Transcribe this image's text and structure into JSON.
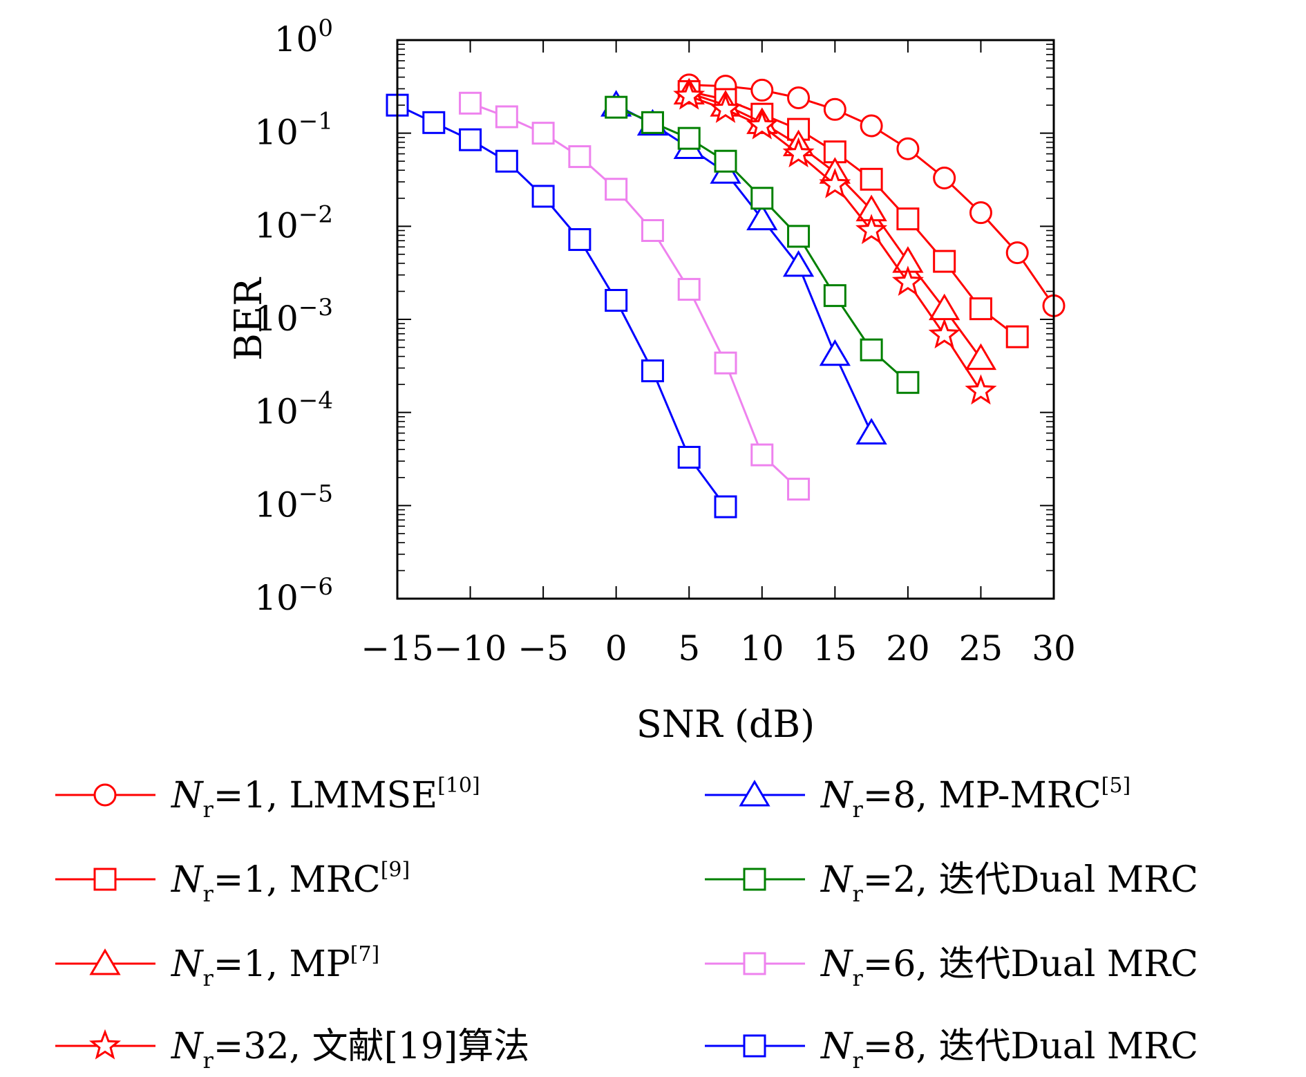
{
  "chart_data": {
    "type": "line",
    "xlabel": "SNR (dB)",
    "ylabel": "BER",
    "xlim": [
      -15,
      30
    ],
    "ylim": [
      1e-06,
      1
    ],
    "y_scale": "log",
    "x_ticks": [
      "−15",
      "−10",
      "−5",
      "0",
      "5",
      "10",
      "15",
      "20",
      "25",
      "30"
    ],
    "y_ticks": [
      {
        "base": "10",
        "exp": "0"
      },
      {
        "base": "10",
        "exp": "−1"
      },
      {
        "base": "10",
        "exp": "−2"
      },
      {
        "base": "10",
        "exp": "−3"
      },
      {
        "base": "10",
        "exp": "−4"
      },
      {
        "base": "10",
        "exp": "−5"
      },
      {
        "base": "10",
        "exp": "−6"
      }
    ],
    "legend_columns": 2,
    "legend_placement": "below",
    "series": [
      {
        "legend": {
          "var": "N",
          "sub": "r",
          "rest": "=1, LMMSE",
          "sup": "[10]"
        },
        "color": "#ff0000",
        "marker": "circle",
        "x": [
          5,
          7.5,
          10,
          12.5,
          15,
          17.5,
          20,
          22.5,
          25,
          27.5,
          30
        ],
        "y": [
          0.33,
          0.32,
          0.29,
          0.24,
          0.18,
          0.12,
          0.068,
          0.033,
          0.014,
          0.0052,
          0.0014
        ]
      },
      {
        "legend": {
          "var": "N",
          "sub": "r",
          "rest": "=1, MRC",
          "sup": "[9]"
        },
        "color": "#ff0000",
        "marker": "square",
        "x": [
          5,
          7.5,
          10,
          12.5,
          15,
          17.5,
          20,
          22.5,
          25,
          27.5
        ],
        "y": [
          0.28,
          0.23,
          0.16,
          0.11,
          0.063,
          0.032,
          0.012,
          0.0042,
          0.0013,
          0.00065
        ]
      },
      {
        "legend": {
          "var": "N",
          "sub": "r",
          "rest": "=1, MP",
          "sup": "[7]"
        },
        "color": "#ff0000",
        "marker": "triangle",
        "x": [
          5,
          7.5,
          10,
          12.5,
          15,
          17.5,
          20,
          22.5,
          25
        ],
        "y": [
          0.27,
          0.2,
          0.13,
          0.075,
          0.038,
          0.015,
          0.0042,
          0.0013,
          0.00038
        ]
      },
      {
        "legend": {
          "var": "N",
          "sub": "r",
          "rest": "=32, 文献[19]算法",
          "sup": ""
        },
        "color": "#ff0000",
        "marker": "star",
        "x": [
          5,
          7.5,
          10,
          12.5,
          15,
          17.5,
          20,
          22.5,
          25
        ],
        "y": [
          0.25,
          0.18,
          0.12,
          0.06,
          0.028,
          0.009,
          0.0025,
          0.00068,
          0.00017
        ]
      },
      {
        "legend": {
          "var": "N",
          "sub": "r",
          "rest": "=8, MP-MRC",
          "sup": "[5]"
        },
        "color": "#0000ff",
        "marker": "triangle",
        "x": [
          0,
          2.5,
          5,
          7.5,
          10,
          12.5,
          15,
          17.5
        ],
        "y": [
          0.2,
          0.125,
          0.07,
          0.038,
          0.012,
          0.0038,
          0.00042,
          6e-05
        ]
      },
      {
        "legend": {
          "var": "N",
          "sub": "r",
          "rest": "=2, 迭代Dual MRC",
          "sup": ""
        },
        "color": "#008000",
        "marker": "square",
        "x": [
          0,
          2.5,
          5,
          7.5,
          10,
          12.5,
          15,
          17.5,
          20
        ],
        "y": [
          0.19,
          0.13,
          0.088,
          0.05,
          0.02,
          0.0078,
          0.0018,
          0.00047,
          0.00021
        ]
      },
      {
        "legend": {
          "var": "N",
          "sub": "r",
          "rest": "=6, 迭代Dual MRC",
          "sup": ""
        },
        "color": "#ee82ee",
        "marker": "square",
        "x": [
          -10,
          -7.5,
          -5,
          -2.5,
          0,
          2.5,
          5,
          7.5,
          10,
          12.5
        ],
        "y": [
          0.21,
          0.15,
          0.1,
          0.056,
          0.025,
          0.009,
          0.0021,
          0.00034,
          3.5e-05,
          1.5e-05
        ]
      },
      {
        "legend": {
          "var": "N",
          "sub": "r",
          "rest": "=8, 迭代Dual MRC",
          "sup": ""
        },
        "color": "#0000ff",
        "marker": "square",
        "x": [
          -15,
          -12.5,
          -10,
          -7.5,
          -5,
          -2.5,
          0,
          2.5,
          5,
          7.5
        ],
        "y": [
          0.2,
          0.13,
          0.085,
          0.05,
          0.021,
          0.0072,
          0.0016,
          0.00028,
          3.3e-05,
          9.7e-06
        ]
      }
    ]
  }
}
